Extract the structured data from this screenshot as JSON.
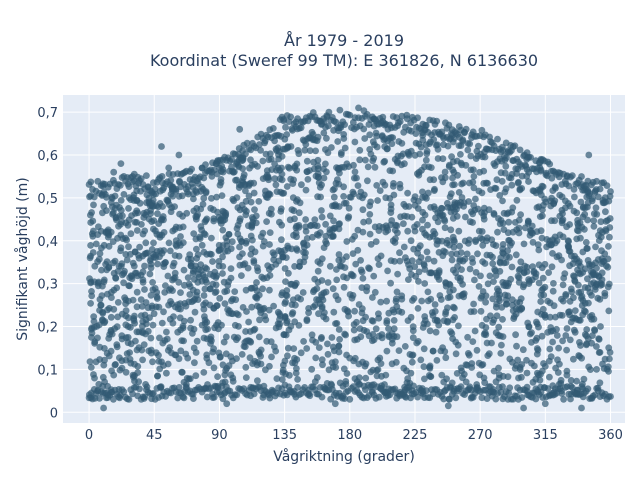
{
  "chart_data": {
    "type": "scatter",
    "title_line1": "År 1979 - 2019",
    "title_line2": "Koordinat (Sweref 99 TM): E 361826, N 6136630",
    "xlabel": "Vågriktning (grader)",
    "ylabel": "Signifikant våghöjd (m)",
    "xlim": [
      -18,
      370
    ],
    "ylim": [
      -0.025,
      0.74
    ],
    "x_ticks": [
      0,
      45,
      90,
      135,
      180,
      225,
      270,
      315,
      360
    ],
    "y_ticks": [
      0,
      0.1,
      0.2,
      0.3,
      0.4,
      0.5,
      0.6,
      0.7
    ],
    "y_tick_labels": [
      "0",
      "0,1",
      "0,2",
      "0,3",
      "0,4",
      "0,5",
      "0,6",
      "0,7"
    ],
    "grid": true,
    "colors": {
      "background": "#e5ecf6",
      "grid": "#ffffff",
      "marker": "#325a73",
      "text": "#2a3f5f"
    },
    "envelope": [
      [
        0,
        0.54
      ],
      [
        15,
        0.54
      ],
      [
        30,
        0.56
      ],
      [
        45,
        0.55
      ],
      [
        60,
        0.56
      ],
      [
        75,
        0.57
      ],
      [
        90,
        0.59
      ],
      [
        105,
        0.62
      ],
      [
        120,
        0.66
      ],
      [
        135,
        0.695
      ],
      [
        150,
        0.7
      ],
      [
        165,
        0.7
      ],
      [
        180,
        0.7
      ],
      [
        195,
        0.7
      ],
      [
        210,
        0.695
      ],
      [
        225,
        0.69
      ],
      [
        240,
        0.68
      ],
      [
        255,
        0.67
      ],
      [
        270,
        0.66
      ],
      [
        285,
        0.64
      ],
      [
        300,
        0.61
      ],
      [
        315,
        0.59
      ],
      [
        330,
        0.56
      ],
      [
        345,
        0.55
      ],
      [
        360,
        0.53
      ]
    ],
    "min_level": 0.03,
    "outliers": [
      [
        50,
        0.62
      ],
      [
        104,
        0.66
      ],
      [
        186,
        0.71
      ],
      [
        345,
        0.6
      ],
      [
        312,
        0.59
      ],
      [
        62,
        0.6
      ],
      [
        78,
        0.57
      ],
      [
        17,
        0.56
      ],
      [
        95,
        0.02
      ],
      [
        315,
        0.02
      ],
      [
        10,
        0.01
      ],
      [
        340,
        0.01
      ],
      [
        248,
        0.015
      ],
      [
        170,
        0.02
      ],
      [
        300,
        0.01
      ],
      [
        22,
        0.58
      ],
      [
        55,
        0.57
      ],
      [
        30,
        0.55
      ],
      [
        88,
        0.58
      ],
      [
        340,
        0.55
      ]
    ],
    "fill_density_sample_count": 2600
  }
}
